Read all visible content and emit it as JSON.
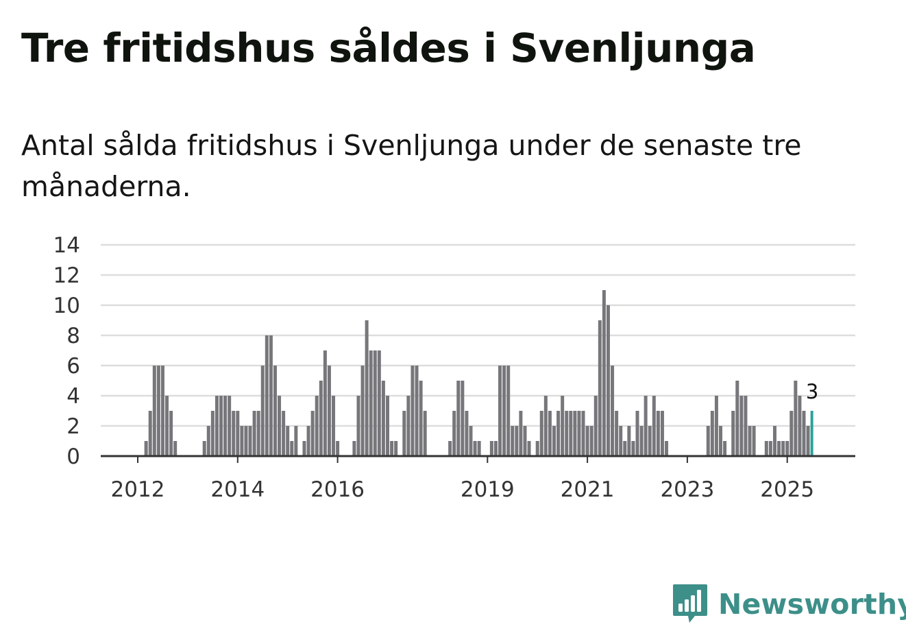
{
  "title": "Tre fritidshus såldes i Svenljunga",
  "subtitle": "Antal sålda fritidshus i Svenljunga under de senaste tre månaderna.",
  "brand": {
    "name": "Newsworthy",
    "color": "#3d8f89",
    "icon": "bar-chart-speech-bubble-icon"
  },
  "colors": {
    "bar": "#77767a",
    "highlight": "#2aa198",
    "grid": "#dddddd",
    "axis": "#333333"
  },
  "chart_data": {
    "type": "bar",
    "title": "Tre fritidshus såldes i Svenljunga",
    "xlabel": "",
    "ylabel": "",
    "ylim": [
      0,
      14
    ],
    "yticks": [
      0,
      2,
      4,
      6,
      8,
      10,
      12,
      14
    ],
    "grid": true,
    "start_month": "2011-04",
    "xticks": [
      {
        "label": "2012",
        "month": "2012-01"
      },
      {
        "label": "2014",
        "month": "2014-01"
      },
      {
        "label": "2016",
        "month": "2016-01"
      },
      {
        "label": "2019",
        "month": "2019-01"
      },
      {
        "label": "2021",
        "month": "2021-01"
      },
      {
        "label": "2023",
        "month": "2023-01"
      },
      {
        "label": "2025",
        "month": "2025-01"
      }
    ],
    "values": [
      0,
      0,
      0,
      0,
      0,
      0,
      0,
      0,
      0,
      0,
      0,
      1,
      3,
      6,
      6,
      6,
      4,
      3,
      1,
      0,
      0,
      0,
      0,
      0,
      0,
      1,
      2,
      3,
      4,
      4,
      4,
      4,
      3,
      3,
      2,
      2,
      2,
      3,
      3,
      6,
      8,
      8,
      6,
      4,
      3,
      2,
      1,
      2,
      0,
      1,
      2,
      3,
      4,
      5,
      7,
      6,
      4,
      1,
      0,
      0,
      0,
      1,
      4,
      6,
      9,
      7,
      7,
      7,
      5,
      4,
      1,
      1,
      0,
      3,
      4,
      6,
      6,
      5,
      3,
      0,
      0,
      0,
      0,
      0,
      1,
      3,
      5,
      5,
      3,
      2,
      1,
      1,
      0,
      0,
      1,
      1,
      6,
      6,
      6,
      2,
      2,
      3,
      2,
      1,
      0,
      1,
      3,
      4,
      3,
      2,
      3,
      4,
      3,
      3,
      3,
      3,
      3,
      2,
      2,
      4,
      9,
      11,
      10,
      6,
      3,
      2,
      1,
      2,
      1,
      3,
      2,
      4,
      2,
      4,
      3,
      3,
      1,
      0,
      0,
      0,
      0,
      0,
      0,
      0,
      0,
      0,
      2,
      3,
      4,
      2,
      1,
      0,
      3,
      5,
      4,
      4,
      2,
      2,
      0,
      0,
      1,
      1,
      2,
      1,
      1,
      1,
      3,
      5,
      4,
      3,
      2,
      3
    ],
    "highlight_last": true,
    "annotation": {
      "index": "last",
      "text": "3"
    }
  }
}
